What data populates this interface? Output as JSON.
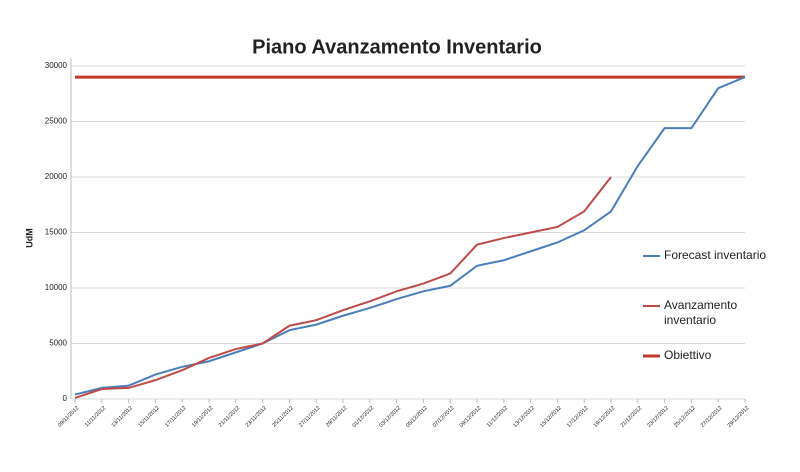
{
  "chart_data": {
    "type": "line",
    "title": "Piano Avanzamento Inventario",
    "y_label": "UdM",
    "categories": [
      "09/11/2012",
      "11/11/2012",
      "13/11/2012",
      "15/11/2012",
      "17/11/2012",
      "19/11/2012",
      "21/11/2012",
      "23/11/2012",
      "25/11/2012",
      "27/11/2012",
      "29/11/2012",
      "01/12/2012",
      "03/12/2012",
      "05/12/2012",
      "07/12/2012",
      "09/12/2012",
      "11/12/2012",
      "13/12/2012",
      "15/12/2012",
      "17/12/2012",
      "19/12/2012",
      "21/12/2012",
      "23/12/2012",
      "25/12/2012",
      "27/12/2012",
      "29/12/2012"
    ],
    "series": [
      {
        "name": "Forecast inventario",
        "color": "#4a7ebb",
        "values": [
          400,
          1000,
          1200,
          2200,
          2900,
          3400,
          4200,
          5000,
          6200,
          6700,
          7500,
          8200,
          9000,
          9700,
          10200,
          12000,
          12500,
          13300,
          14100,
          15200,
          16900,
          21000,
          24400,
          24400,
          28000,
          29000
        ]
      },
      {
        "name": "Avanzamento inventario",
        "color": "#be4b48",
        "values": [
          100,
          900,
          1000,
          1700,
          2600,
          3700,
          4500,
          5000,
          6600,
          7100,
          8000,
          8800,
          9700,
          10400,
          11300,
          13900,
          14500,
          15000,
          15500,
          16900,
          20000,
          null,
          null,
          null,
          null,
          null
        ]
      },
      {
        "name": "Obiettivo",
        "color": "#c0392b",
        "width": 3,
        "values": [
          29000,
          29000,
          29000,
          29000,
          29000,
          29000,
          29000,
          29000,
          29000,
          29000,
          29000,
          29000,
          29000,
          29000,
          29000,
          29000,
          29000,
          29000,
          29000,
          29000,
          29000,
          29000,
          29000,
          29000,
          29000,
          29000
        ]
      }
    ],
    "ylim": [
      0,
      30000
    ],
    "yticks": [
      0,
      5000,
      10000,
      15000,
      20000,
      25000,
      30000
    ],
    "grid": true
  }
}
